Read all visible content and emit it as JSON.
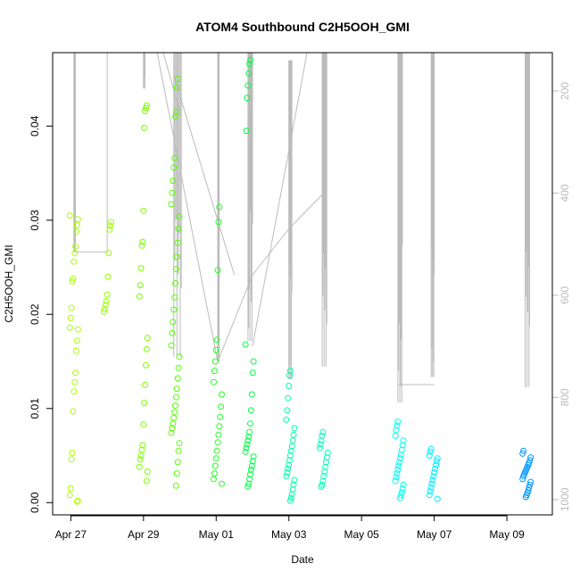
{
  "chart_data": {
    "type": "scatter",
    "title": "ATOM4 Southbound C2H5OOH_GMI",
    "xlabel": "Date",
    "ylabel": "C2H5OOH_GMI",
    "x_ticks": [
      "Apr 27",
      "Apr 29",
      "May 01",
      "May 03",
      "May 05",
      "May 07",
      "May 09"
    ],
    "x_tick_dates": [
      "2018-04-27",
      "2018-04-29",
      "2018-05-01",
      "2018-05-03",
      "2018-05-05",
      "2018-05-07",
      "2018-05-09"
    ],
    "xlim": [
      "2018-04-26 12:00",
      "2018-05-10 06:00"
    ],
    "y_ticks": [
      "0.00",
      "0.01",
      "0.02",
      "0.03",
      "0.04"
    ],
    "ylim": [
      -0.0013,
      0.0478
    ],
    "secondary_axis": {
      "label_values": [
        "200",
        "400",
        "600",
        "800",
        "1000"
      ],
      "range": [
        125,
        1030
      ],
      "reversed": true,
      "color": "#bbbbbb"
    },
    "grid": false,
    "legend": "none",
    "series_color_scale": [
      "#aaff00",
      "#00ff44",
      "#00ffdd",
      "#0088ff"
    ],
    "clusters": [
      {
        "time": "2018-04-27 02:00",
        "ymin": 0.0,
        "ymax": 0.0305,
        "color": "#aaff00",
        "vals": [
          0.0305,
          0.0301,
          0.0295,
          0.0288,
          0.0272,
          0.0265,
          0.0256,
          0.0238,
          0.0235,
          0.0207,
          0.0196,
          0.0186,
          0.0184,
          0.0172,
          0.0161,
          0.0138,
          0.0128,
          0.0118,
          0.0097,
          0.0053,
          0.0046,
          0.0015,
          0.0008,
          0.0002,
          0.0001
        ]
      },
      {
        "time": "2018-04-28 00:00",
        "ymin": 0.0203,
        "ymax": 0.0298,
        "color": "#99ff00",
        "vals": [
          0.0298,
          0.0294,
          0.029,
          0.0265,
          0.024,
          0.0221,
          0.0214,
          0.021,
          0.0206,
          0.0203
        ]
      },
      {
        "time": "2018-04-29 00:00",
        "ymin": 0.0023,
        "ymax": 0.0422,
        "color": "#77ff00",
        "vals": [
          0.0422,
          0.0419,
          0.0416,
          0.0398,
          0.031,
          0.0277,
          0.0273,
          0.0249,
          0.0231,
          0.0219,
          0.0175,
          0.0163,
          0.0146,
          0.0125,
          0.0106,
          0.0083,
          0.0061,
          0.0056,
          0.005,
          0.0046,
          0.0038,
          0.0033,
          0.0023
        ]
      },
      {
        "time": "2018-04-29 21:00",
        "ymin": 0.0015,
        "ymax": 0.045,
        "color": "#55ff00",
        "vals": [
          0.045,
          0.0441,
          0.0415,
          0.041,
          0.0366,
          0.0356,
          0.0342,
          0.0329,
          0.0317,
          0.0304,
          0.0291,
          0.0276,
          0.0261,
          0.0248,
          0.0233,
          0.0218,
          0.0205,
          0.0192,
          0.018,
          0.0167,
          0.0155,
          0.0143,
          0.0132,
          0.0121,
          0.0112,
          0.0103,
          0.0096,
          0.009,
          0.0084,
          0.0079,
          0.0074,
          0.0063,
          0.0055,
          0.0043,
          0.0031,
          0.0018
        ]
      },
      {
        "time": "2018-05-01 01:00",
        "ymin": 0.002,
        "ymax": 0.0314,
        "color": "#22ff22",
        "vals": [
          0.0314,
          0.0298,
          0.0247,
          0.0173,
          0.0162,
          0.015,
          0.014,
          0.0128,
          0.0115,
          0.0102,
          0.0091,
          0.0081,
          0.0072,
          0.0064,
          0.0055,
          0.0047,
          0.0039,
          0.0031,
          0.0025,
          0.002
        ]
      },
      {
        "time": "2018-05-01 22:00",
        "ymin": 0.0017,
        "ymax": 0.047,
        "color": "#00ff44",
        "vals": [
          0.047,
          0.0466,
          0.0456,
          0.0443,
          0.043,
          0.0395,
          0.0168,
          0.015,
          0.0138,
          0.0115,
          0.0098,
          0.0084,
          0.0075,
          0.007,
          0.0066,
          0.0062,
          0.0058,
          0.0054,
          0.0049,
          0.0044,
          0.0039,
          0.0035,
          0.003,
          0.0025,
          0.002,
          0.0017
        ]
      },
      {
        "time": "2018-05-03 01:00",
        "ymin": 0.0002,
        "ymax": 0.014,
        "color": "#00ffaa",
        "vals": [
          0.014,
          0.0135,
          0.0124,
          0.0111,
          0.0098,
          0.0088,
          0.0079,
          0.0072,
          0.0066,
          0.006,
          0.0055,
          0.005,
          0.0045,
          0.004,
          0.0036,
          0.0032,
          0.0028,
          0.0024,
          0.0019,
          0.0014,
          0.0009,
          0.0005,
          0.0002
        ]
      },
      {
        "time": "2018-05-03 23:00",
        "ymin": 0.0017,
        "ymax": 0.0075,
        "color": "#00ffbb",
        "vals": [
          0.0075,
          0.0071,
          0.0066,
          0.0062,
          0.0058,
          0.0053,
          0.0048,
          0.0043,
          0.0038,
          0.0033,
          0.0028,
          0.0023,
          0.0019,
          0.0017
        ]
      },
      {
        "time": "2018-05-06 01:00",
        "ymin": 0.0005,
        "ymax": 0.0086,
        "color": "#00ffee",
        "vals": [
          0.0086,
          0.0082,
          0.0077,
          0.0071,
          0.0066,
          0.0061,
          0.0056,
          0.0051,
          0.0047,
          0.0043,
          0.0039,
          0.0035,
          0.0031,
          0.0027,
          0.0023,
          0.0019,
          0.0015,
          0.0011,
          0.0008,
          0.0005
        ]
      },
      {
        "time": "2018-05-06 23:30",
        "ymin": 0.0004,
        "ymax": 0.0057,
        "color": "#00eeff",
        "vals": [
          0.0057,
          0.0054,
          0.005,
          0.0047,
          0.0044,
          0.004,
          0.0036,
          0.0032,
          0.0028,
          0.0024,
          0.002,
          0.0016,
          0.0012,
          0.0008,
          0.0004
        ]
      },
      {
        "time": "2018-05-09 13:00",
        "ymin": 0.0006,
        "ymax": 0.0055,
        "color": "#0099ff",
        "vals": [
          0.0055,
          0.0052,
          0.0048,
          0.0045,
          0.0042,
          0.004,
          0.0038,
          0.0036,
          0.0034,
          0.0032,
          0.003,
          0.0028,
          0.0025,
          0.0022,
          0.0019,
          0.0016,
          0.0013,
          0.001,
          0.0008,
          0.0006
        ]
      }
    ],
    "pressure_profiles": [
      {
        "start": "2018-04-27 02:00",
        "end": "2018-04-27 03:00",
        "p_min": 125,
        "p_max": 515
      },
      {
        "start": "2018-04-29 00:00",
        "end": "2018-04-29 01:00",
        "p_min": 125,
        "p_max": 195
      },
      {
        "start": "2018-04-29 20:00",
        "end": "2018-04-30 01:00",
        "p_min": 125,
        "p_max": 720
      },
      {
        "start": "2018-05-01 01:00",
        "end": "2018-05-01 02:00",
        "p_min": 125,
        "p_max": 730
      },
      {
        "start": "2018-05-01 21:00",
        "end": "2018-05-02 00:00",
        "p_min": 125,
        "p_max": 690
      },
      {
        "start": "2018-05-03 00:00",
        "end": "2018-05-03 02:00",
        "p_min": 140,
        "p_max": 765
      },
      {
        "start": "2018-05-03 22:00",
        "end": "2018-05-04 01:00",
        "p_min": 125,
        "p_max": 740
      },
      {
        "start": "2018-05-06 00:00",
        "end": "2018-05-06 03:00",
        "p_min": 125,
        "p_max": 810
      },
      {
        "start": "2018-05-06 22:00",
        "end": "2018-05-07 00:00",
        "p_min": 125,
        "p_max": 760
      },
      {
        "start": "2018-05-09 12:00",
        "end": "2018-05-09 15:00",
        "p_min": 125,
        "p_max": 780
      }
    ],
    "pressure_connectors": [
      {
        "x": [
          "2018-04-27 02:00",
          "2018-04-28 00:00"
        ],
        "p": [
          515,
          515
        ]
      },
      {
        "x": [
          "2018-04-28 00:00",
          "2018-04-28 00:00"
        ],
        "p": [
          515,
          125
        ]
      },
      {
        "x": [
          "2018-04-29 09:00",
          "2018-05-01 01:00"
        ],
        "p": [
          125,
          730
        ]
      },
      {
        "x": [
          "2018-04-29 13:00",
          "2018-04-30 01:00"
        ],
        "p": [
          125,
          250
        ]
      },
      {
        "x": [
          "2018-04-29 20:00",
          "2018-05-01 12:00"
        ],
        "p": [
          170,
          560
        ]
      },
      {
        "x": [
          "2018-05-01 01:00",
          "2018-05-02 00:00"
        ],
        "p": [
          730,
          560
        ]
      },
      {
        "x": [
          "2018-05-02 00:00",
          "2018-05-03 00:00"
        ],
        "p": [
          560,
          470
        ]
      },
      {
        "x": [
          "2018-05-03 00:00",
          "2018-05-03 23:00"
        ],
        "p": [
          470,
          400
        ]
      },
      {
        "x": [
          "2018-05-02 00:00",
          "2018-05-03 12:00"
        ],
        "p": [
          700,
          125
        ]
      },
      {
        "x": [
          "2018-05-06 00:00",
          "2018-05-07 00:00"
        ],
        "p": [
          775,
          775
        ]
      }
    ]
  }
}
